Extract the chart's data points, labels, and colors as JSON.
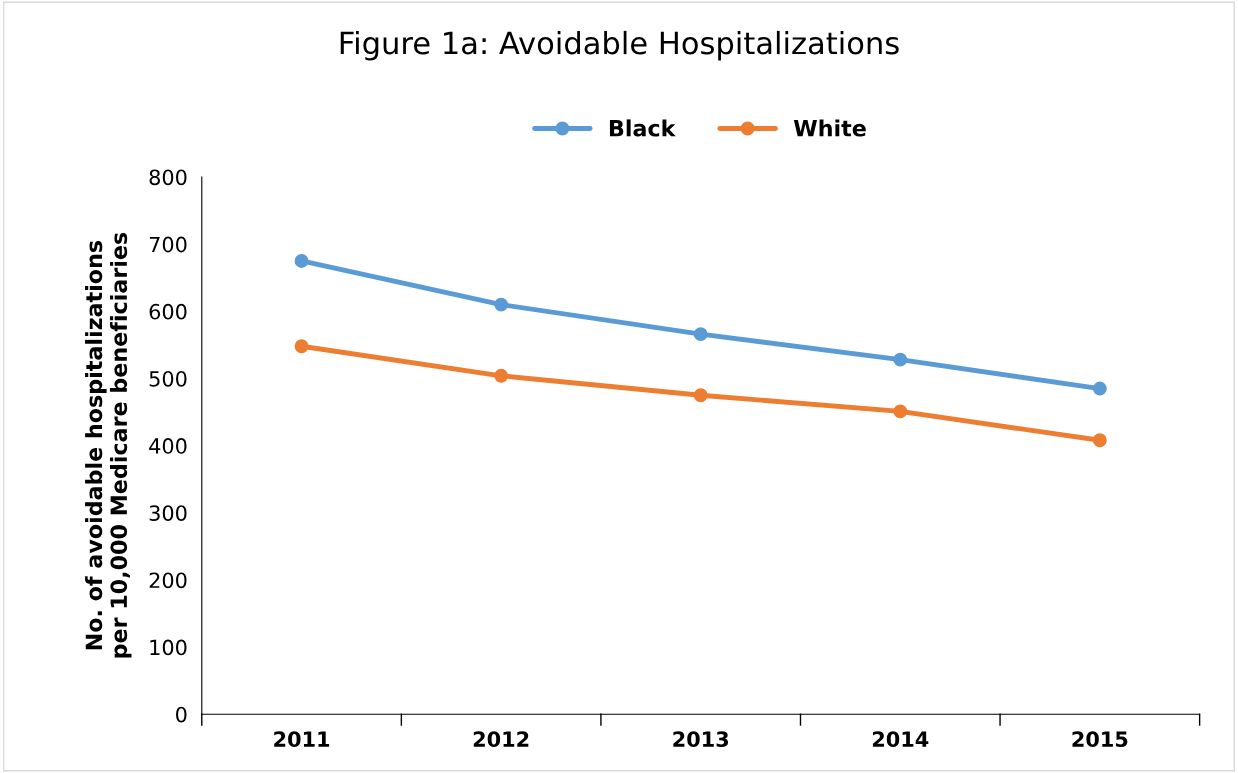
{
  "chart_data": {
    "type": "line",
    "title": "Figure 1a: Avoidable Hospitalizations",
    "ylabel": "No. of avoidable hospitalizations\nper 10,000 Medicare beneficiaries",
    "categories": [
      "2011",
      "2012",
      "2013",
      "2014",
      "2015"
    ],
    "series": [
      {
        "name": "Black",
        "color": "#5b9bd5",
        "values": [
          675,
          610,
          566,
          528,
          485
        ]
      },
      {
        "name": "White",
        "color": "#ed7d31",
        "values": [
          548,
          504,
          475,
          451,
          408
        ]
      }
    ],
    "ylim": [
      0,
      800
    ],
    "yticks": [
      0,
      100,
      200,
      300,
      400,
      500,
      600,
      700,
      800
    ],
    "grid": false,
    "legend": "top",
    "marker": "circle",
    "line_style": "solid"
  }
}
